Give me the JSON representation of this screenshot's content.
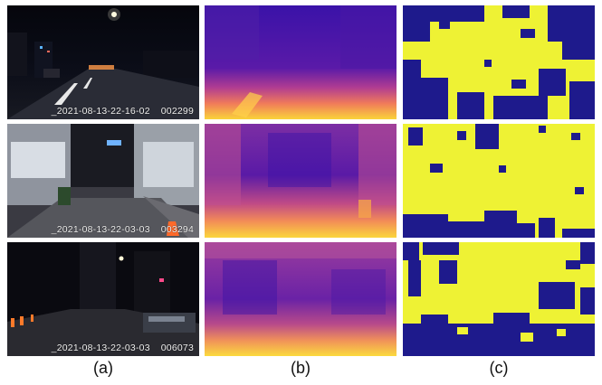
{
  "captions": [
    "(a)",
    "(b)",
    "(c)"
  ],
  "rows": [
    {
      "timestamp": "_2021-08-13-22-16-02",
      "frame": "002299"
    },
    {
      "timestamp": "_2021-08-13-22-03-03",
      "frame": "003294"
    },
    {
      "timestamp": "_2021-08-13-22-03-03",
      "frame": "006073"
    }
  ],
  "colors": {
    "mask_foreground": "#eef234",
    "mask_background": "#1e1a8c",
    "depth_near": "#f8d23a",
    "depth_mid": "#e05a8a",
    "depth_far": "#3a12a8"
  }
}
